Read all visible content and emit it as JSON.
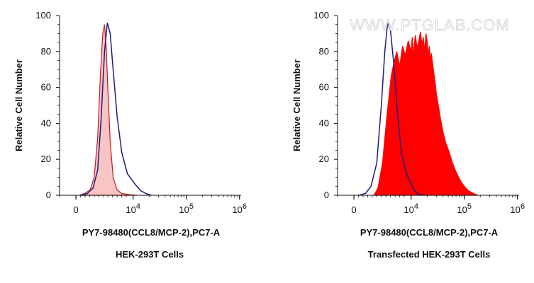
{
  "watermark": "WWW.PTGLAB.COM",
  "chart_data": [
    {
      "type": "area",
      "title": "",
      "xlabel": "PY7-98480(CCL8/MCP-2),PC7-A",
      "ylabel": "Relative Cell Number",
      "caption": "HEK-293T Cells",
      "xscale": "biexponential",
      "xlim": [
        -800,
        1000000
      ],
      "ylim": [
        0,
        100
      ],
      "x_ticks": [
        {
          "value": 0,
          "label": "0"
        },
        {
          "value": 10000,
          "label": "10",
          "exp": "4"
        },
        {
          "value": 100000,
          "label": "10",
          "exp": "5"
        },
        {
          "value": 1000000,
          "label": "10",
          "exp": "6"
        }
      ],
      "y_ticks": [
        0,
        20,
        40,
        60,
        80,
        100
      ],
      "grid": false,
      "series": [
        {
          "fill": "#f9c4c4",
          "stroke": "#cc1a1a",
          "filled": true,
          "x": [
            600,
            1500,
            2500,
            3200,
            3800,
            4300,
            4700,
            5000,
            5300,
            5600,
            6000,
            6500,
            7200,
            8000,
            9500,
            12000
          ],
          "y": [
            0,
            1,
            3,
            10,
            32,
            68,
            90,
            95,
            82,
            58,
            30,
            10,
            3,
            1,
            0.3,
            0
          ]
        },
        {
          "fill": "none",
          "stroke": "#1c1c80",
          "filled": false,
          "x": [
            800,
            2000,
            3000,
            3800,
            4400,
            5000,
            5500,
            6000,
            6500,
            7200,
            8000,
            9000,
            11000,
            14000,
            18000,
            22000
          ],
          "y": [
            0,
            1,
            4,
            14,
            42,
            80,
            96,
            90,
            70,
            44,
            24,
            12,
            6,
            2.5,
            0.8,
            0
          ]
        }
      ]
    },
    {
      "type": "area",
      "title": "",
      "xlabel": "PY7-98480(CCL8/MCP-2),PC7-A",
      "ylabel": "Relative Cell Number",
      "caption": "Transfected HEK-293T Cells",
      "xscale": "biexponential",
      "xlim": [
        -800,
        1000000
      ],
      "ylim": [
        0,
        100
      ],
      "x_ticks": [
        {
          "value": 0,
          "label": "0"
        },
        {
          "value": 10000,
          "label": "10",
          "exp": "4"
        },
        {
          "value": 100000,
          "label": "10",
          "exp": "5"
        },
        {
          "value": 1000000,
          "label": "10",
          "exp": "6"
        }
      ],
      "y_ticks": [
        0,
        20,
        40,
        60,
        80,
        100
      ],
      "grid": false,
      "series": [
        {
          "fill": "#ff0000",
          "stroke": "#ff0000",
          "filled": true,
          "x": [
            3500,
            4200,
            5000,
            5800,
            6500,
            7000,
            7500,
            8000,
            8500,
            9000,
            9500,
            10000,
            10500,
            11000,
            11500,
            12000,
            13000,
            14000,
            15000,
            16000,
            17000,
            18000,
            19000,
            20000,
            21000,
            22000,
            23000,
            24000,
            26000,
            28000,
            30000,
            33000,
            36000,
            40000,
            45000,
            52000,
            60000,
            70000,
            85000,
            100000,
            120000,
            150000,
            180000
          ],
          "y": [
            0,
            4,
            18,
            45,
            66,
            74,
            80,
            72,
            83,
            78,
            86,
            80,
            88,
            76,
            84,
            89,
            82,
            86,
            91,
            84,
            88,
            80,
            90,
            86,
            78,
            83,
            75,
            79,
            71,
            64,
            56,
            49,
            42,
            35,
            29,
            24,
            18,
            13,
            8,
            5,
            2.5,
            1,
            0
          ]
        },
        {
          "fill": "none",
          "stroke": "#1c1c80",
          "filled": false,
          "x": [
            800,
            2000,
            3000,
            4000,
            4800,
            5400,
            5900,
            6400,
            7000,
            7600,
            8300,
            9200,
            10500,
            12000,
            14000,
            17000
          ],
          "y": [
            0,
            1,
            5,
            18,
            50,
            80,
            96,
            92,
            72,
            46,
            24,
            12,
            5,
            2,
            0.6,
            0
          ]
        }
      ]
    }
  ]
}
